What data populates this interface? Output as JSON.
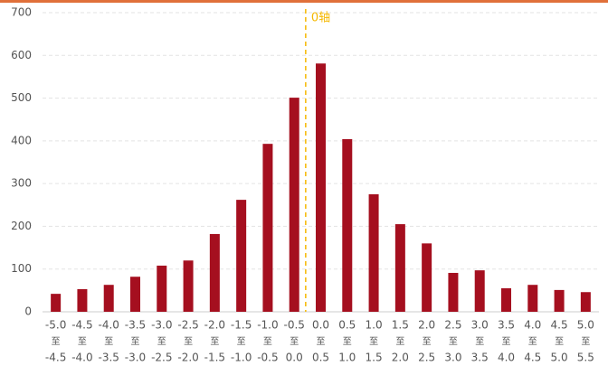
{
  "chart_data": {
    "type": "bar",
    "categories": [
      [
        "-5.0",
        "至",
        "-4.5"
      ],
      [
        "-4.5",
        "至",
        "-4.0"
      ],
      [
        "-4.0",
        "至",
        "-3.5"
      ],
      [
        "-3.5",
        "至",
        "-3.0"
      ],
      [
        "-3.0",
        "至",
        "-2.5"
      ],
      [
        "-2.5",
        "至",
        "-2.0"
      ],
      [
        "-2.0",
        "至",
        "-1.5"
      ],
      [
        "-1.5",
        "至",
        "-1.0"
      ],
      [
        "-1.0",
        "至",
        "-0.5"
      ],
      [
        "-0.5",
        "至",
        "0.0"
      ],
      [
        "0.0",
        "至",
        "0.5"
      ],
      [
        "0.5",
        "至",
        "1.0"
      ],
      [
        "1.0",
        "至",
        "1.5"
      ],
      [
        "1.5",
        "至",
        "2.0"
      ],
      [
        "2.0",
        "至",
        "2.5"
      ],
      [
        "2.5",
        "至",
        "3.0"
      ],
      [
        "3.0",
        "至",
        "3.5"
      ],
      [
        "3.5",
        "至",
        "4.0"
      ],
      [
        "4.0",
        "至",
        "4.5"
      ],
      [
        "4.5",
        "至",
        "5.0"
      ],
      [
        "5.0",
        "至",
        "5.5"
      ]
    ],
    "values": [
      42,
      53,
      63,
      82,
      108,
      120,
      182,
      262,
      393,
      501,
      581,
      404,
      275,
      205,
      160,
      91,
      97,
      55,
      63,
      51,
      46
    ],
    "color": "#a50f1f",
    "ylim": [
      0,
      700
    ],
    "yticks": [
      0,
      100,
      200,
      300,
      400,
      500,
      600,
      700
    ],
    "grid": true,
    "annotation": {
      "text": "0轴",
      "color": "#f5b800"
    }
  }
}
